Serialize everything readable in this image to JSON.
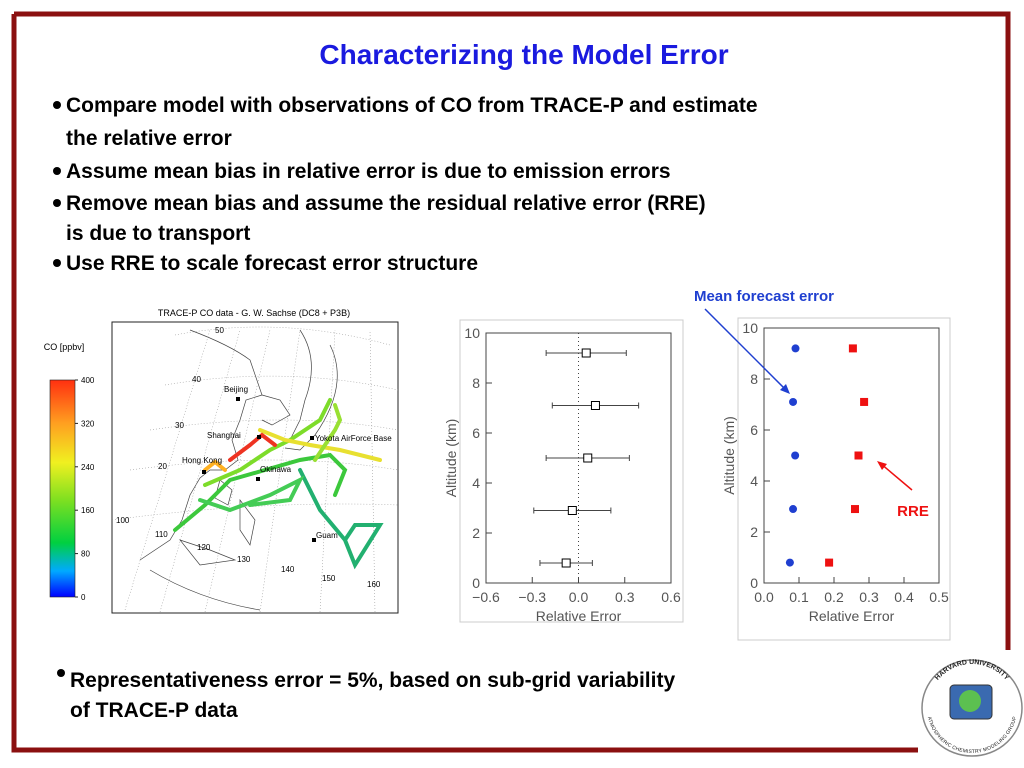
{
  "title": "Characterizing the Model Error",
  "bullets": [
    [
      "Compare model with observations of CO from TRACE-P and estimate",
      "the relative error"
    ],
    [
      "Assume mean bias in relative error is due to emission errors"
    ],
    [
      "Remove mean bias  and assume the residual relative error (RRE)",
      "is due to transport"
    ],
    [
      "Use RRE to scale forecast error structure"
    ]
  ],
  "bottom_bullet": [
    "Representativeness error = 5%, based on sub-grid variability",
    "of TRACE-P data"
  ],
  "map": {
    "title": "TRACE-P CO data - G. W. Sachse (DC8 + P3B)",
    "colorbar_label": "CO [ppbv]",
    "colorbar_ticks": [
      0,
      80,
      160,
      240,
      320,
      400
    ],
    "labels": [
      "50",
      "40",
      "30",
      "20",
      "100",
      "110",
      "120",
      "130",
      "140",
      "150",
      "160",
      "Beijing",
      "Shanghai",
      "Hong Kong",
      "Okinawa",
      "Yokota AirForce Base",
      "Guam"
    ]
  },
  "chart_data": [
    {
      "type": "errorbar",
      "xlabel": "Relative Error",
      "ylabel": "Altitude (km)",
      "xlim": [
        -0.6,
        0.6
      ],
      "ylim": [
        0,
        10
      ],
      "xticks": [
        {
          "value": -0.6,
          "label": "−0.6"
        },
        {
          "value": -0.3,
          "label": "−0.3"
        },
        {
          "value": 0,
          "label": "0.0"
        },
        0.3,
        0.6
      ],
      "yticks": [
        0,
        2,
        4,
        6,
        8,
        10
      ],
      "reference_line": 0,
      "series": [
        {
          "marker": "square",
          "color": "#000000",
          "x": [
            -0.08,
            -0.04,
            0.06,
            0.11,
            0.05
          ],
          "y": [
            0.8,
            2.9,
            5.0,
            7.1,
            9.2
          ],
          "xerr": [
            0.17,
            0.25,
            0.27,
            0.28,
            0.26
          ]
        }
      ]
    },
    {
      "type": "scatter",
      "xlabel": "Relative Error",
      "ylabel": "Altitude (km)",
      "xlim": [
        0,
        0.5
      ],
      "ylim": [
        0,
        10
      ],
      "xticks": [
        {
          "value": 0,
          "label": "0.0"
        },
        0.1,
        0.2,
        0.3,
        0.4,
        0.5
      ],
      "yticks": [
        0,
        2,
        4,
        6,
        8,
        10
      ],
      "annotations": [
        "Mean forecast error",
        "RRE"
      ],
      "series": [
        {
          "marker": "circle",
          "color": "#1f3fd0",
          "x": [
            0.074,
            0.083,
            0.089,
            0.083,
            0.09
          ],
          "y": [
            0.8,
            2.9,
            5.0,
            7.1,
            9.2
          ]
        },
        {
          "marker": "square",
          "color": "#ee1111",
          "x": [
            0.186,
            0.26,
            0.27,
            0.286,
            0.254
          ],
          "y": [
            0.8,
            2.9,
            5.0,
            7.1,
            9.2
          ]
        }
      ]
    }
  ],
  "logo": {
    "top": "HARVARD UNIVERSITY",
    "bottom": "ATMOSPHERIC CHEMISTRY MODELING GROUP"
  }
}
